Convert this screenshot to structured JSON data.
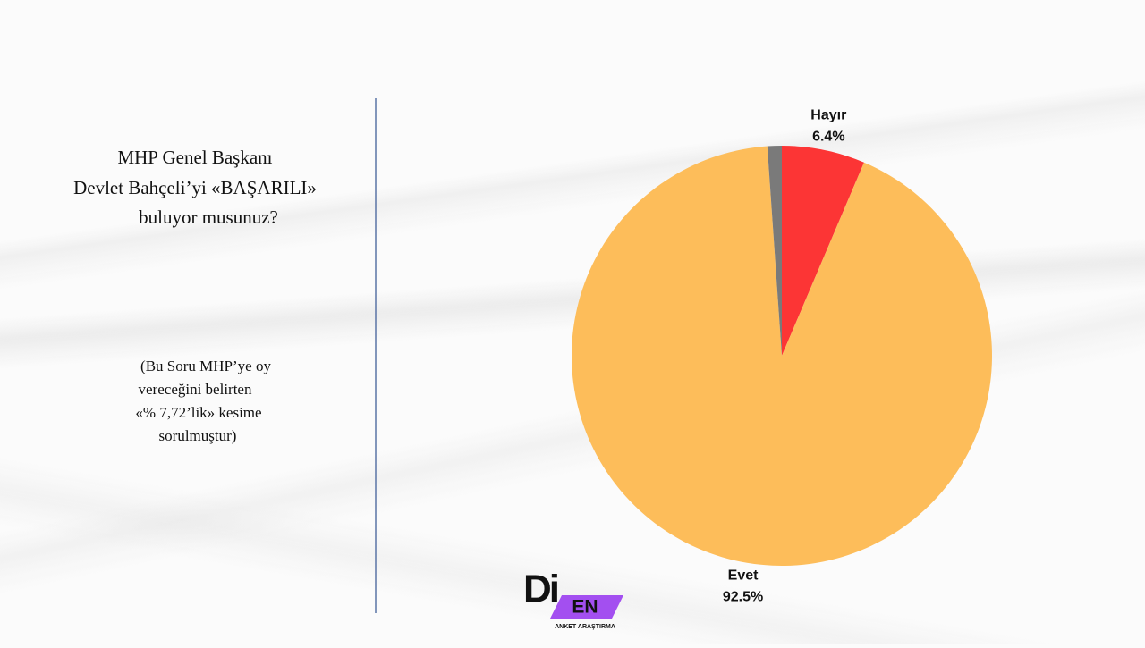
{
  "question": [
    "MHP Genel Başkanı",
    "Devlet Bahçeli’yi «BAŞARILI»",
    "buluyor musunuz?"
  ],
  "note": [
    "(Bu Soru MHP’ye oy",
    "vereceğini belirten",
    "«% 7,72’lik» kesime",
    "sorulmuştur)"
  ],
  "logo": {
    "mark": "Di",
    "badge": "EN",
    "caption": "ANKET ARAŞTIRMA"
  },
  "chart_data": {
    "type": "pie",
    "categories": [
      "Hayır",
      "Evet",
      null
    ],
    "values": [
      6.4,
      92.5,
      1.1
    ],
    "value_labels": [
      "6.4%",
      "92.5%",
      null
    ],
    "colors": [
      "#fc3535",
      "#fdbd5a",
      "#7a7a7a"
    ]
  }
}
